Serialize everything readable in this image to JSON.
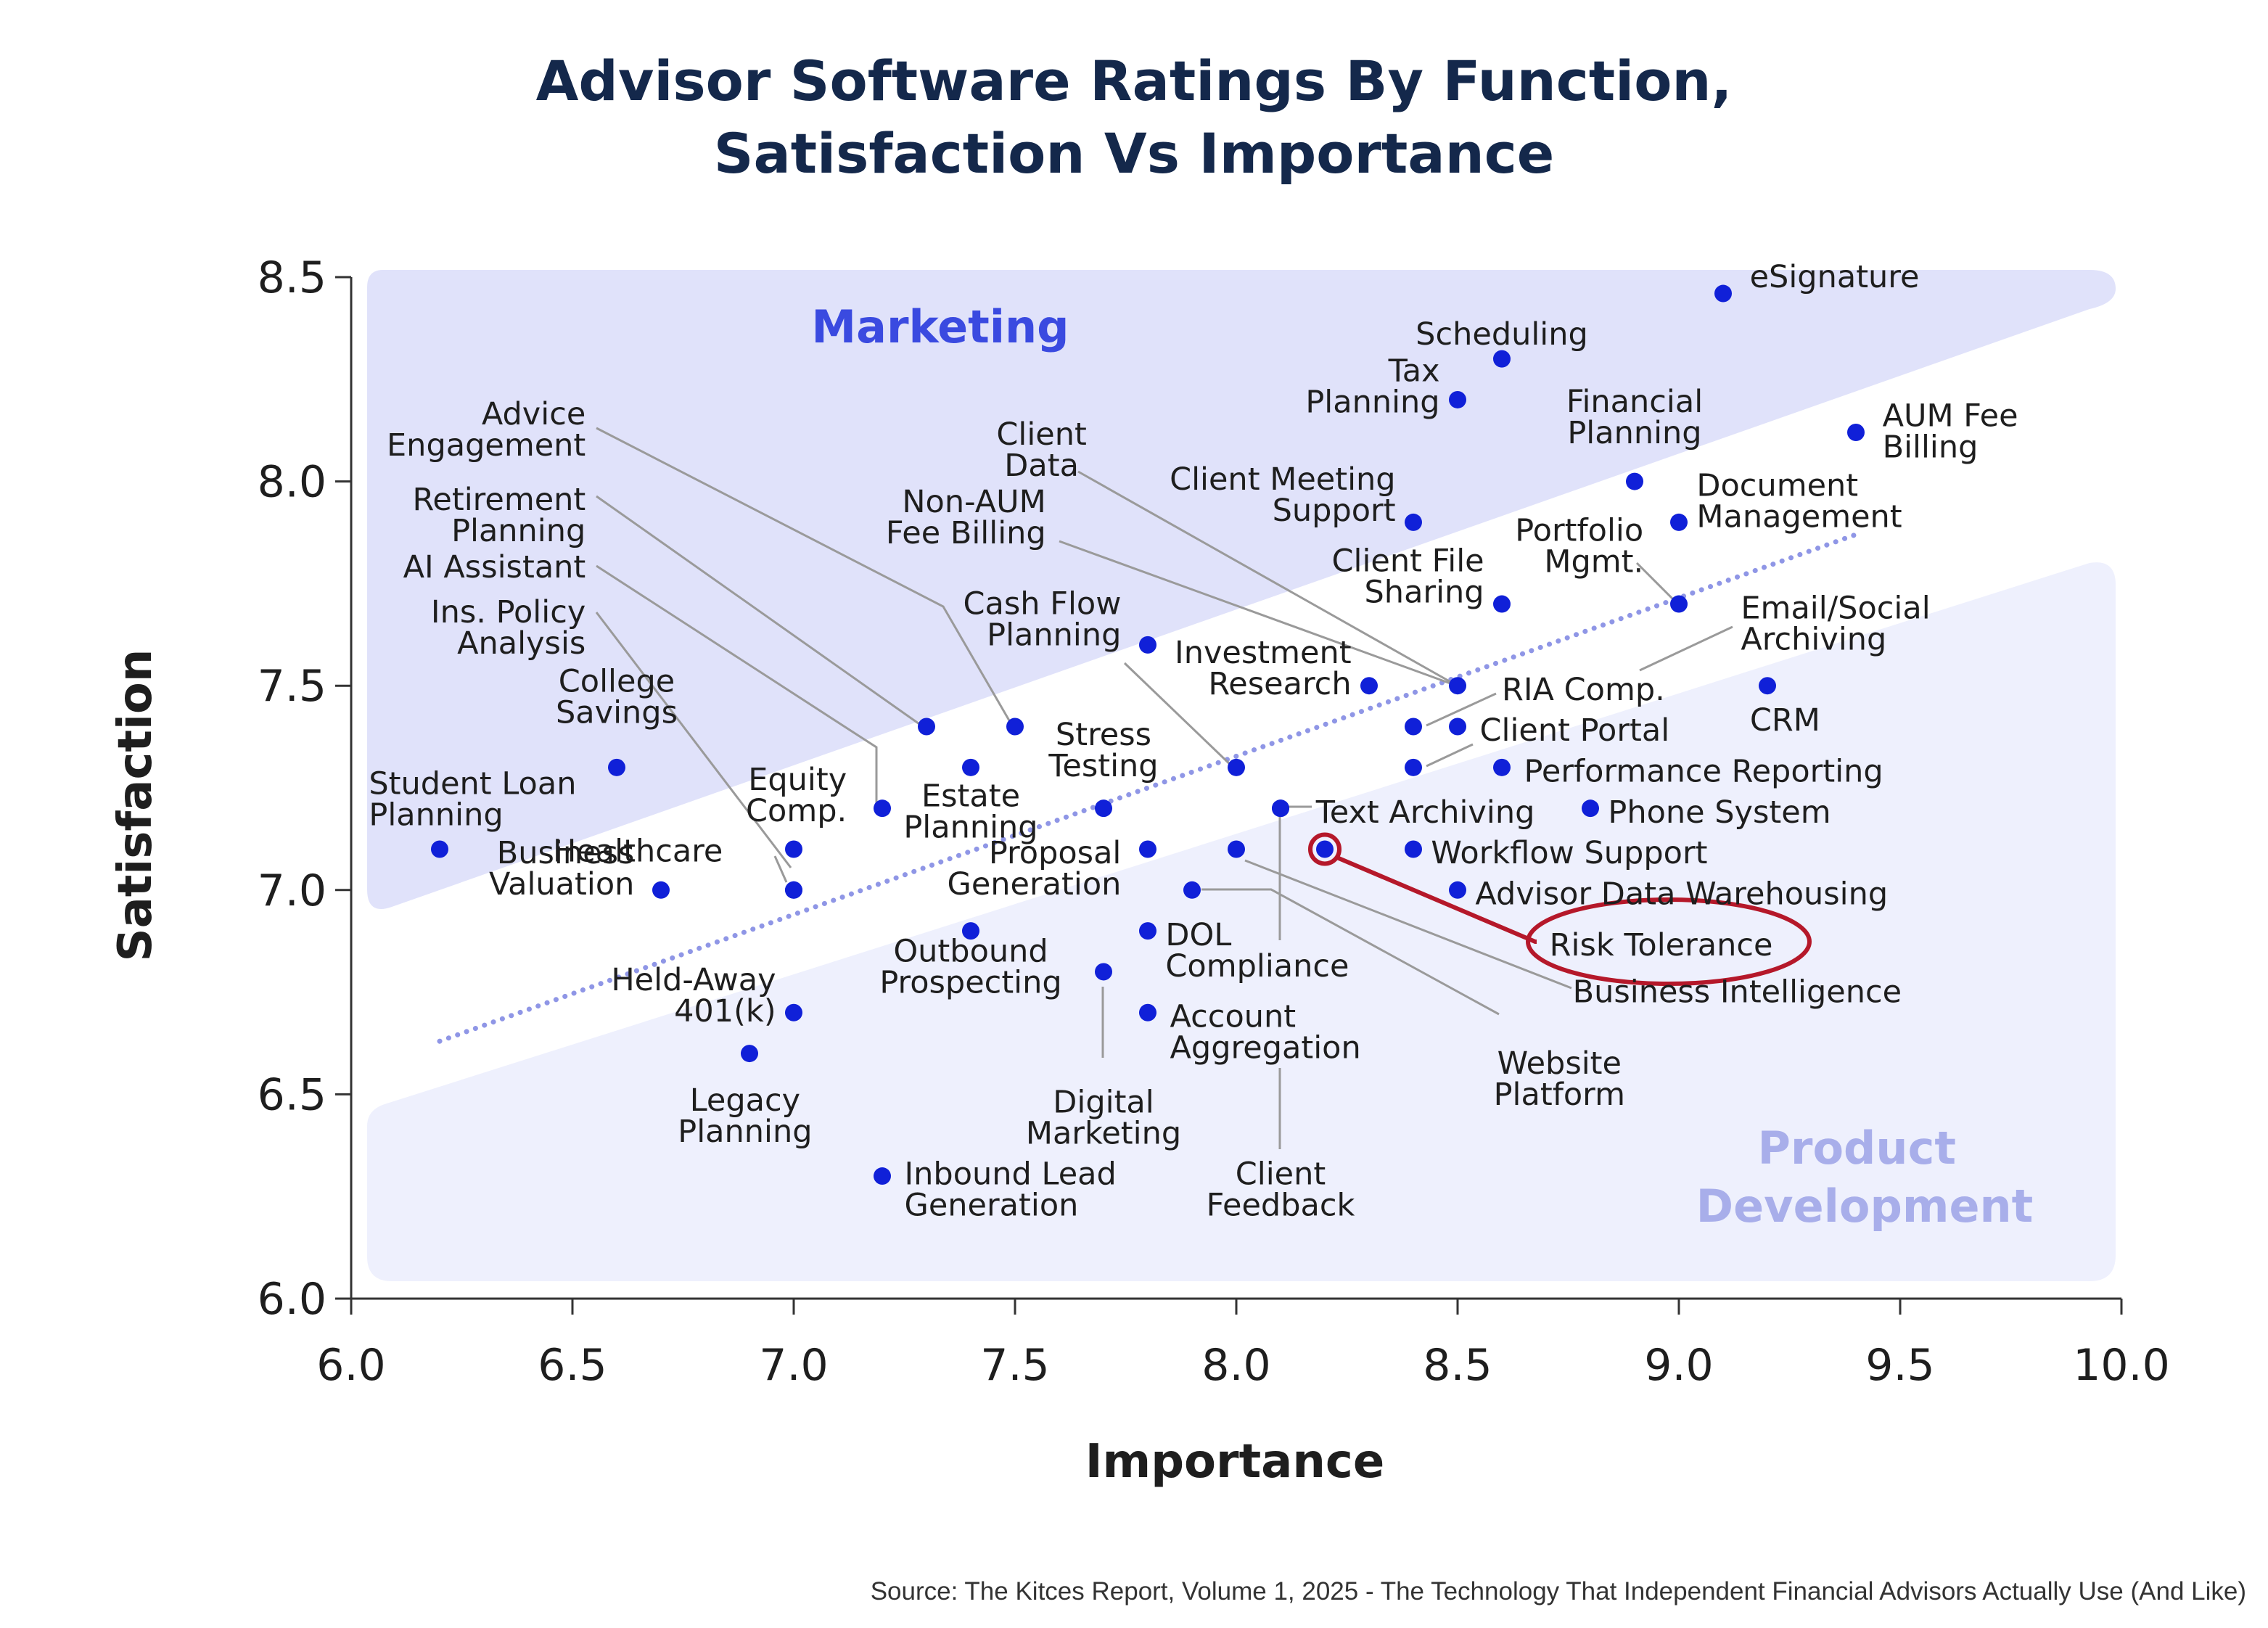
{
  "chart_data": {
    "type": "scatter",
    "title": [
      "Advisor Software Ratings By Function,",
      "Satisfaction Vs Importance"
    ],
    "xlabel": "Importance",
    "ylabel": "Satisfaction",
    "xlim": [
      6.0,
      10.0
    ],
    "ylim": [
      6.0,
      8.5
    ],
    "xticks": [
      "6.0",
      "6.5",
      "7.0",
      "7.5",
      "8.0",
      "8.5",
      "9.0",
      "9.5",
      "10.0"
    ],
    "yticks": [
      "6.0",
      "6.5",
      "7.0",
      "7.5",
      "8.0",
      "8.5"
    ],
    "grid": false,
    "trendline": {
      "style": "dotted",
      "from": [
        6.2,
        6.63
      ],
      "to": [
        9.4,
        7.87
      ]
    },
    "regions": [
      {
        "name": "Marketing",
        "position": "upper-left",
        "color": "#e0e2fa",
        "label_color": "#3a4ae0"
      },
      {
        "name": "Product Development",
        "position": "lower-right",
        "color": "#eef0fd",
        "label_color": "#a8aeea"
      }
    ],
    "highlight": {
      "name": "Risk Tolerance",
      "color": "#b5182a"
    },
    "points": [
      {
        "name": "eSignature",
        "x": 9.1,
        "y": 8.46
      },
      {
        "name": "Scheduling",
        "x": 8.6,
        "y": 8.3
      },
      {
        "name": "Tax Planning",
        "x": 8.5,
        "y": 8.2
      },
      {
        "name": "AUM Fee Billing",
        "x": 9.4,
        "y": 8.12
      },
      {
        "name": "Financial Planning",
        "x": 8.9,
        "y": 8.0
      },
      {
        "name": "Document Management",
        "x": 9.0,
        "y": 7.9
      },
      {
        "name": "Client Meeting Support",
        "x": 8.4,
        "y": 7.9
      },
      {
        "name": "Portfolio Mgmt.",
        "x": 9.0,
        "y": 7.7
      },
      {
        "name": "Client File Sharing",
        "x": 8.6,
        "y": 7.7
      },
      {
        "name": "Cash Flow Planning",
        "x": 7.8,
        "y": 7.6
      },
      {
        "name": "CRM",
        "x": 9.2,
        "y": 7.5
      },
      {
        "name": "Investment Research",
        "x": 8.3,
        "y": 7.5
      },
      {
        "name": "Email/Social Archiving",
        "x": 8.5,
        "y": 7.5
      },
      {
        "name": "RIA Comp.",
        "x": 8.4,
        "y": 7.4
      },
      {
        "name": "Client Portal",
        "x": 8.5,
        "y": 7.4
      },
      {
        "name": "Performance Reporting",
        "x": 8.6,
        "y": 7.3
      },
      {
        "name": "Client Data",
        "x": 8.4,
        "y": 7.3
      },
      {
        "name": "Non-AUM Fee Billing",
        "x": 8.0,
        "y": 7.3
      },
      {
        "name": "Advice Engagement",
        "x": 7.5,
        "y": 7.4
      },
      {
        "name": "Retirement Planning",
        "x": 7.3,
        "y": 7.4
      },
      {
        "name": "Estate Planning",
        "x": 7.4,
        "y": 7.3
      },
      {
        "name": "AI Assistant",
        "x": 7.2,
        "y": 7.2
      },
      {
        "name": "Stress Testing",
        "x": 7.7,
        "y": 7.2
      },
      {
        "name": "Text Archiving",
        "x": 8.1,
        "y": 7.2
      },
      {
        "name": "Phone System",
        "x": 8.8,
        "y": 7.2
      },
      {
        "name": "College Savings",
        "x": 6.6,
        "y": 7.3
      },
      {
        "name": "Student Loan Planning",
        "x": 6.2,
        "y": 7.1
      },
      {
        "name": "Equity Comp.",
        "x": 7.0,
        "y": 7.1
      },
      {
        "name": "Ins. Policy Analysis",
        "x": 7.0,
        "y": 7.0
      },
      {
        "name": "Business Valuation",
        "x": 6.7,
        "y": 7.0
      },
      {
        "name": "Healthcare",
        "x": 7.0,
        "y": 7.0
      },
      {
        "name": "Proposal Generation",
        "x": 7.8,
        "y": 7.1
      },
      {
        "name": "Business Intelligence",
        "x": 8.0,
        "y": 7.1
      },
      {
        "name": "Risk Tolerance",
        "x": 8.2,
        "y": 7.1
      },
      {
        "name": "Workflow Support",
        "x": 8.4,
        "y": 7.1
      },
      {
        "name": "Website Platform",
        "x": 7.9,
        "y": 7.0
      },
      {
        "name": "Advisor Data Warehousing",
        "x": 8.5,
        "y": 7.0
      },
      {
        "name": "Outbound Prospecting",
        "x": 7.4,
        "y": 6.9
      },
      {
        "name": "DOL Compliance",
        "x": 7.8,
        "y": 6.9
      },
      {
        "name": "Digital Marketing",
        "x": 7.7,
        "y": 6.8
      },
      {
        "name": "Account Aggregation",
        "x": 7.8,
        "y": 6.7
      },
      {
        "name": "Held-Away 401(k)",
        "x": 7.0,
        "y": 6.7
      },
      {
        "name": "Legacy Planning",
        "x": 6.9,
        "y": 6.6
      },
      {
        "name": "Inbound Lead Generation",
        "x": 7.2,
        "y": 6.3
      },
      {
        "name": "Client Feedback",
        "x": 8.1,
        "y": 7.2
      }
    ],
    "labels": [
      {
        "text": [
          "eSignature"
        ],
        "x": 9.16,
        "y": 8.475,
        "anchor": "start"
      },
      {
        "text": [
          "Scheduling"
        ],
        "x": 8.6,
        "y": 8.335,
        "anchor": "middle"
      },
      {
        "text": [
          "Tax",
          "Planning"
        ],
        "x": 8.46,
        "y": 8.245,
        "anchor": "end"
      },
      {
        "text": [
          "AUM Fee",
          "Billing"
        ],
        "x": 9.46,
        "y": 8.135,
        "anchor": "start"
      },
      {
        "text": [
          "Financial",
          "Planning"
        ],
        "x": 8.9,
        "y": 8.17,
        "anchor": "middle"
      },
      {
        "text": [
          "Document",
          "Management"
        ],
        "x": 9.04,
        "y": 7.965,
        "anchor": "start"
      },
      {
        "text": [
          "Client Meeting",
          "Support"
        ],
        "x": 8.36,
        "y": 7.98,
        "anchor": "end"
      },
      {
        "text": [
          "Portfolio",
          "Mgmt."
        ],
        "x": 8.92,
        "y": 7.855,
        "anchor": "end"
      },
      {
        "text": [
          "Client File",
          "Sharing"
        ],
        "x": 8.56,
        "y": 7.78,
        "anchor": "end"
      },
      {
        "text": [
          "Cash Flow",
          "Planning"
        ],
        "x": 7.74,
        "y": 7.675,
        "anchor": "end"
      },
      {
        "text": [
          "CRM"
        ],
        "x": 9.24,
        "y": 7.39,
        "anchor": "middle"
      },
      {
        "text": [
          "Investment",
          "Research"
        ],
        "x": 8.26,
        "y": 7.555,
        "anchor": "end"
      },
      {
        "text": [
          "Email/Social",
          "Archiving"
        ],
        "x": 9.14,
        "y": 7.665,
        "anchor": "start"
      },
      {
        "text": [
          "RIA Comp."
        ],
        "x": 8.6,
        "y": 7.465,
        "anchor": "start"
      },
      {
        "text": [
          "Client Portal"
        ],
        "x": 8.55,
        "y": 7.365,
        "anchor": "start"
      },
      {
        "text": [
          "Performance Reporting"
        ],
        "x": 8.65,
        "y": 7.265,
        "anchor": "start"
      },
      {
        "text": [
          "Client",
          "Data"
        ],
        "x": 7.56,
        "y": 8.09,
        "anchor": "middle"
      },
      {
        "text": [
          "Non-AUM",
          "Fee Billing"
        ],
        "x": 7.57,
        "y": 7.925,
        "anchor": "end"
      },
      {
        "text": [
          "Advice",
          "Engagement"
        ],
        "x": 6.53,
        "y": 8.14,
        "anchor": "end"
      },
      {
        "text": [
          "Retirement",
          "Planning"
        ],
        "x": 6.53,
        "y": 7.93,
        "anchor": "end"
      },
      {
        "text": [
          "AI Assistant"
        ],
        "x": 6.53,
        "y": 7.765,
        "anchor": "end"
      },
      {
        "text": [
          "Ins. Policy",
          "Analysis"
        ],
        "x": 6.53,
        "y": 7.655,
        "anchor": "end"
      },
      {
        "text": [
          "Estate",
          "Planning"
        ],
        "x": 7.4,
        "y": 7.205,
        "anchor": "middle"
      },
      {
        "text": [
          "Stress",
          "Testing"
        ],
        "x": 7.7,
        "y": 7.355,
        "anchor": "middle"
      },
      {
        "text": [
          "Text Archiving"
        ],
        "x": 8.18,
        "y": 7.165,
        "anchor": "start"
      },
      {
        "text": [
          "Phone System"
        ],
        "x": 8.84,
        "y": 7.165,
        "anchor": "start"
      },
      {
        "text": [
          "College",
          "Savings"
        ],
        "x": 6.6,
        "y": 7.485,
        "anchor": "middle"
      },
      {
        "text": [
          "Student Loan",
          "Planning"
        ],
        "x": 6.04,
        "y": 7.235,
        "anchor": "start"
      },
      {
        "text": [
          "Equity",
          "Comp."
        ],
        "x": 7.12,
        "y": 7.245,
        "anchor": "end"
      },
      {
        "text": [
          "Healthcare"
        ],
        "x": 6.84,
        "y": 7.07,
        "anchor": "end"
      },
      {
        "text": [
          "Business",
          "Valuation"
        ],
        "x": 6.64,
        "y": 7.065,
        "anchor": "end"
      },
      {
        "text": [
          "Proposal",
          "Generation"
        ],
        "x": 7.74,
        "y": 7.065,
        "anchor": "end"
      },
      {
        "text": [
          "Workflow Support"
        ],
        "x": 8.44,
        "y": 7.065,
        "anchor": "start"
      },
      {
        "text": [
          "Advisor Data Warehousing"
        ],
        "x": 8.54,
        "y": 6.965,
        "anchor": "start"
      },
      {
        "text": [
          "Risk Tolerance"
        ],
        "x": 8.96,
        "y": 6.84,
        "anchor": "middle"
      },
      {
        "text": [
          "Business Intelligence"
        ],
        "x": 8.76,
        "y": 6.725,
        "anchor": "start"
      },
      {
        "text": [
          "Outbound",
          "Prospecting"
        ],
        "x": 7.4,
        "y": 6.825,
        "anchor": "middle"
      },
      {
        "text": [
          "DOL",
          "Compliance"
        ],
        "x": 7.84,
        "y": 6.865,
        "anchor": "start"
      },
      {
        "text": [
          "Account",
          "Aggregation"
        ],
        "x": 7.85,
        "y": 6.665,
        "anchor": "start"
      },
      {
        "text": [
          "Website",
          "Platform"
        ],
        "x": 8.73,
        "y": 6.55,
        "anchor": "middle"
      },
      {
        "text": [
          "Digital",
          "Marketing"
        ],
        "x": 7.7,
        "y": 6.455,
        "anchor": "middle"
      },
      {
        "text": [
          "Held-Away",
          "401(k)"
        ],
        "x": 6.96,
        "y": 6.755,
        "anchor": "end"
      },
      {
        "text": [
          "Legacy",
          "Planning"
        ],
        "x": 6.89,
        "y": 6.46,
        "anchor": "middle"
      },
      {
        "text": [
          "Inbound Lead",
          "Generation"
        ],
        "x": 7.25,
        "y": 6.28,
        "anchor": "start"
      },
      {
        "text": [
          "Client",
          "Feedback"
        ],
        "x": 8.1,
        "y": 6.28,
        "anchor": "middle"
      }
    ],
    "source": "Source: The Kitces Report, Volume 1, 2025 - The Technology That Independent Financial Advisors Actually Use (And Like)"
  },
  "colors": {
    "point": "#1020d8",
    "text": "#1e1e1e",
    "title": "#14284b",
    "leader": "#9a9a9a",
    "trend": "#8f96e6"
  }
}
